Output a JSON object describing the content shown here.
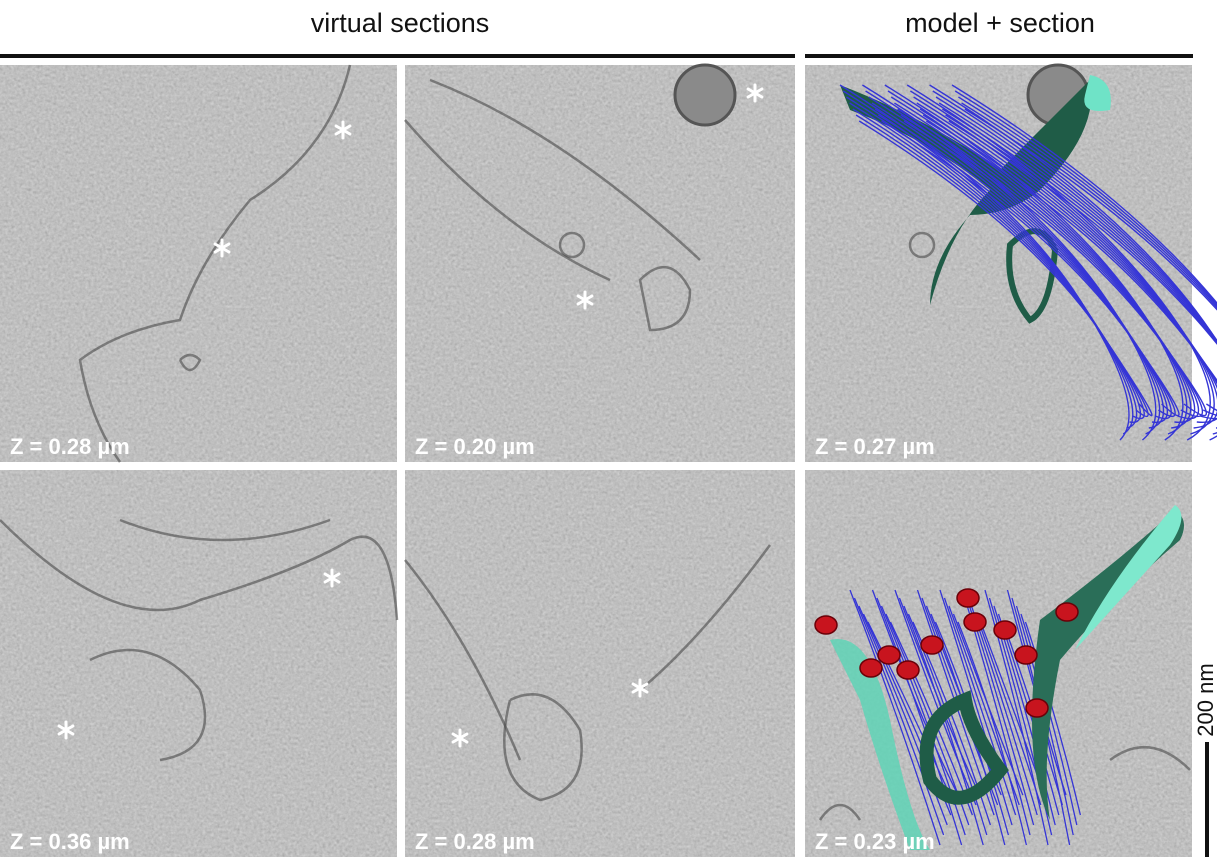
{
  "headers": [
    "virtual sections",
    "model + section"
  ],
  "panels": [
    {
      "label": "Z = 0.28 µm"
    },
    {
      "label": "Z = 0.20 µm"
    },
    {
      "label": "Z = 0.27 µm"
    },
    {
      "label": "Z = 0.36 µm"
    },
    {
      "label": "Z = 0.28 µm"
    },
    {
      "label": "Z = 0.23 µm"
    }
  ],
  "scale_bar": {
    "label": "200 nm"
  }
}
